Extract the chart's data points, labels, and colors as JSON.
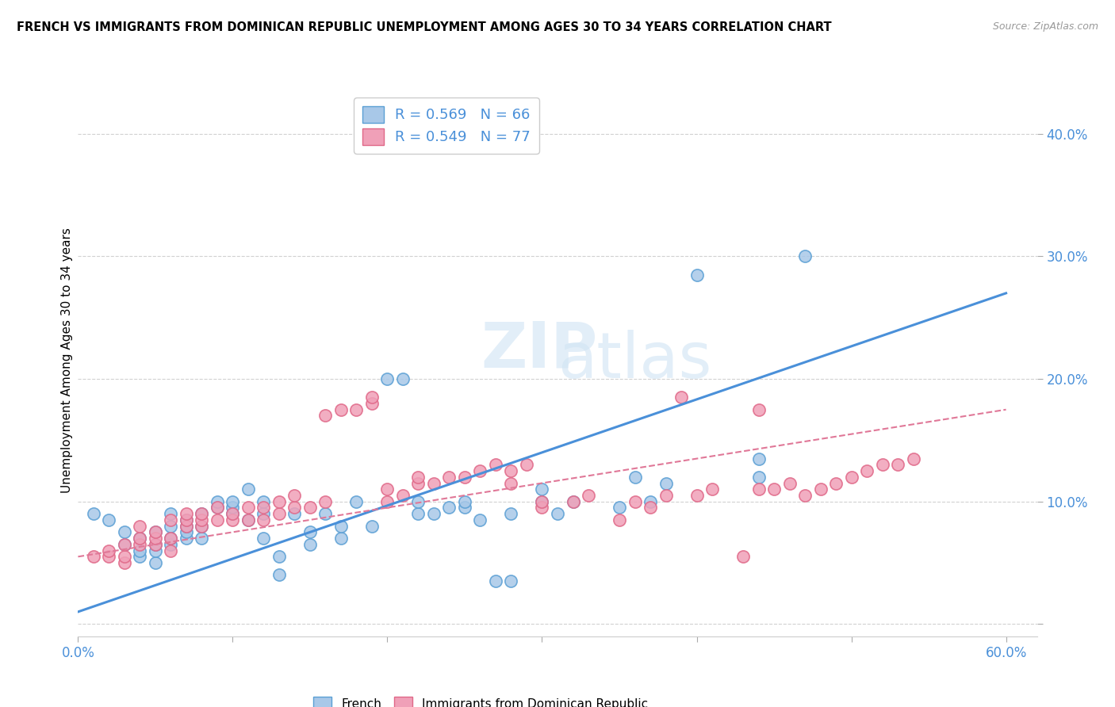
{
  "title": "FRENCH VS IMMIGRANTS FROM DOMINICAN REPUBLIC UNEMPLOYMENT AMONG AGES 30 TO 34 YEARS CORRELATION CHART",
  "source": "Source: ZipAtlas.com",
  "ylabel": "Unemployment Among Ages 30 to 34 years",
  "xlim": [
    0.0,
    0.62
  ],
  "ylim": [
    -0.01,
    0.44
  ],
  "xtick_positions": [
    0.0,
    0.1,
    0.2,
    0.3,
    0.4,
    0.5,
    0.6
  ],
  "xticklabels": [
    "0.0%",
    "",
    "",
    "",
    "",
    "",
    "60.0%"
  ],
  "ytick_positions": [
    0.0,
    0.1,
    0.2,
    0.3,
    0.4
  ],
  "yticklabels": [
    "",
    "10.0%",
    "20.0%",
    "30.0%",
    "40.0%"
  ],
  "french_color": "#a8c8e8",
  "immigrant_color": "#f0a0b8",
  "french_edge_color": "#5a9fd4",
  "immigrant_edge_color": "#e06888",
  "french_line_color": "#4a90d9",
  "immigrant_line_color": "#e07898",
  "french_R": 0.569,
  "french_N": 66,
  "immigrant_R": 0.549,
  "immigrant_N": 77,
  "french_scatter_x": [
    0.01,
    0.02,
    0.03,
    0.03,
    0.04,
    0.04,
    0.04,
    0.05,
    0.05,
    0.05,
    0.05,
    0.06,
    0.06,
    0.06,
    0.06,
    0.07,
    0.07,
    0.07,
    0.07,
    0.08,
    0.08,
    0.08,
    0.09,
    0.09,
    0.1,
    0.1,
    0.1,
    0.11,
    0.11,
    0.12,
    0.12,
    0.12,
    0.13,
    0.13,
    0.14,
    0.15,
    0.15,
    0.16,
    0.17,
    0.17,
    0.18,
    0.19,
    0.2,
    0.21,
    0.22,
    0.22,
    0.23,
    0.24,
    0.25,
    0.25,
    0.26,
    0.27,
    0.28,
    0.28,
    0.3,
    0.3,
    0.31,
    0.32,
    0.35,
    0.36,
    0.37,
    0.38,
    0.4,
    0.44,
    0.44,
    0.47
  ],
  "french_scatter_y": [
    0.09,
    0.085,
    0.075,
    0.065,
    0.055,
    0.06,
    0.07,
    0.05,
    0.06,
    0.065,
    0.075,
    0.065,
    0.07,
    0.08,
    0.09,
    0.07,
    0.075,
    0.08,
    0.085,
    0.07,
    0.08,
    0.09,
    0.095,
    0.1,
    0.09,
    0.095,
    0.1,
    0.085,
    0.11,
    0.09,
    0.1,
    0.07,
    0.04,
    0.055,
    0.09,
    0.065,
    0.075,
    0.09,
    0.07,
    0.08,
    0.1,
    0.08,
    0.2,
    0.2,
    0.09,
    0.1,
    0.09,
    0.095,
    0.095,
    0.1,
    0.085,
    0.035,
    0.035,
    0.09,
    0.1,
    0.11,
    0.09,
    0.1,
    0.095,
    0.12,
    0.1,
    0.115,
    0.285,
    0.12,
    0.135,
    0.3
  ],
  "immigrant_scatter_x": [
    0.01,
    0.02,
    0.02,
    0.03,
    0.03,
    0.03,
    0.04,
    0.04,
    0.04,
    0.05,
    0.05,
    0.05,
    0.06,
    0.06,
    0.06,
    0.07,
    0.07,
    0.07,
    0.08,
    0.08,
    0.08,
    0.09,
    0.09,
    0.1,
    0.1,
    0.11,
    0.11,
    0.12,
    0.12,
    0.13,
    0.13,
    0.14,
    0.14,
    0.15,
    0.16,
    0.16,
    0.17,
    0.18,
    0.19,
    0.19,
    0.2,
    0.2,
    0.21,
    0.22,
    0.22,
    0.23,
    0.24,
    0.25,
    0.26,
    0.27,
    0.28,
    0.28,
    0.29,
    0.3,
    0.3,
    0.32,
    0.33,
    0.35,
    0.36,
    0.37,
    0.38,
    0.39,
    0.4,
    0.41,
    0.43,
    0.44,
    0.44,
    0.45,
    0.46,
    0.47,
    0.48,
    0.49,
    0.5,
    0.51,
    0.52,
    0.53,
    0.54
  ],
  "immigrant_scatter_y": [
    0.055,
    0.055,
    0.06,
    0.05,
    0.055,
    0.065,
    0.065,
    0.07,
    0.08,
    0.065,
    0.07,
    0.075,
    0.06,
    0.07,
    0.085,
    0.08,
    0.085,
    0.09,
    0.08,
    0.085,
    0.09,
    0.085,
    0.095,
    0.085,
    0.09,
    0.085,
    0.095,
    0.085,
    0.095,
    0.09,
    0.1,
    0.095,
    0.105,
    0.095,
    0.1,
    0.17,
    0.175,
    0.175,
    0.18,
    0.185,
    0.1,
    0.11,
    0.105,
    0.115,
    0.12,
    0.115,
    0.12,
    0.12,
    0.125,
    0.13,
    0.115,
    0.125,
    0.13,
    0.095,
    0.1,
    0.1,
    0.105,
    0.085,
    0.1,
    0.095,
    0.105,
    0.185,
    0.105,
    0.11,
    0.055,
    0.11,
    0.175,
    0.11,
    0.115,
    0.105,
    0.11,
    0.115,
    0.12,
    0.125,
    0.13,
    0.13,
    0.135
  ],
  "french_trend_x": [
    0.0,
    0.6
  ],
  "french_trend_y": [
    0.01,
    0.27
  ],
  "immigrant_trend_x": [
    0.0,
    0.6
  ],
  "immigrant_trend_y": [
    0.055,
    0.175
  ],
  "watermark_line1": "ZIP",
  "watermark_line2": "atlas",
  "background_color": "#ffffff",
  "grid_color": "#cccccc"
}
